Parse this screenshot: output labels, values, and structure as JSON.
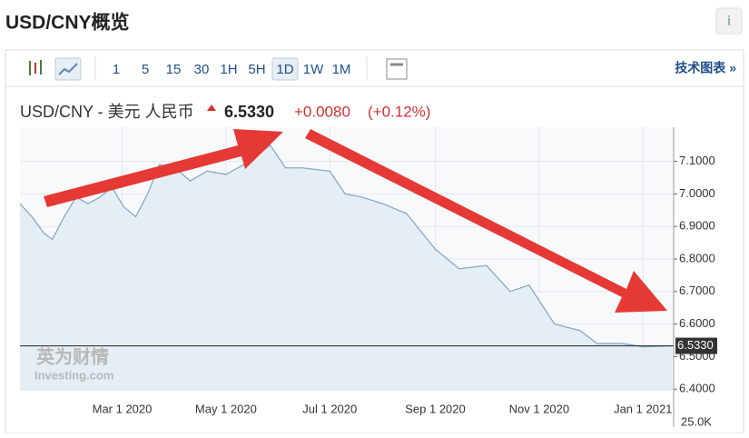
{
  "header": {
    "title": "USD/CNY概览",
    "info": "i"
  },
  "toolbar": {
    "intervals": [
      "1",
      "5",
      "15",
      "30",
      "1H",
      "5H",
      "1D",
      "1W",
      "1M"
    ],
    "active": "1D",
    "link": "技术图表 »"
  },
  "quote": {
    "name": "USD/CNY - 美元 人民币",
    "change": "+0.0080",
    "change_pct": "(+0.12%)"
  },
  "watermark": {
    "cn": "英为财情",
    "en": "Investing.com"
  },
  "chart_data": {
    "type": "area",
    "color": "#86a9c8",
    "fill": "#e6eef5",
    "x": [
      "2020-01-01",
      "2020-01-08",
      "2020-01-15",
      "2020-01-20",
      "2020-01-27",
      "2020-02-03",
      "2020-02-10",
      "2020-02-17",
      "2020-02-24",
      "2020-03-02",
      "2020-03-09",
      "2020-03-16",
      "2020-03-23",
      "2020-04-01",
      "2020-04-10",
      "2020-04-20",
      "2020-05-01",
      "2020-05-15",
      "2020-05-27",
      "2020-06-05",
      "2020-06-15",
      "2020-07-01",
      "2020-07-10",
      "2020-07-20",
      "2020-08-01",
      "2020-08-15",
      "2020-09-01",
      "2020-09-15",
      "2020-10-01",
      "2020-10-15",
      "2020-10-26",
      "2020-11-10",
      "2020-11-25",
      "2020-12-05",
      "2020-12-20",
      "2021-01-01",
      "2021-01-18"
    ],
    "values": [
      6.97,
      6.93,
      6.88,
      6.86,
      6.93,
      6.99,
      6.97,
      6.99,
      7.02,
      6.96,
      6.93,
      7.0,
      7.09,
      7.08,
      7.04,
      7.07,
      7.06,
      7.1,
      7.15,
      7.08,
      7.08,
      7.07,
      7.0,
      6.99,
      6.97,
      6.94,
      6.83,
      6.77,
      6.78,
      6.7,
      6.72,
      6.6,
      6.58,
      6.54,
      6.54,
      6.53,
      6.533
    ],
    "last": {
      "value": 6.533,
      "label": "6.5330"
    },
    "xlim": [
      "2020-01-01",
      "2021-01-19"
    ],
    "xticks": [
      {
        "value": "2020-03-01",
        "label": "Mar 1 2020"
      },
      {
        "value": "2020-05-01",
        "label": "May 1 2020"
      },
      {
        "value": "2020-07-01",
        "label": "Jul 1 2020"
      },
      {
        "value": "2020-09-01",
        "label": "Sep 1 2020"
      },
      {
        "value": "2020-11-01",
        "label": "Nov 1 2020"
      },
      {
        "value": "2021-01-01",
        "label": "Jan 1 2021"
      }
    ],
    "ylim": [
      6.395,
      7.205
    ],
    "yticks": [
      {
        "value": 6.4,
        "label": "6.4000"
      },
      {
        "value": 6.5,
        "label": "6.5000"
      },
      {
        "value": 6.6,
        "label": "6.6000"
      },
      {
        "value": 6.7,
        "label": "6.7000"
      },
      {
        "value": 6.8,
        "label": "6.8000"
      },
      {
        "value": 6.9,
        "label": "6.9000"
      },
      {
        "value": 7.0,
        "label": "7.0000"
      },
      {
        "value": 7.1,
        "label": "7.1000"
      }
    ],
    "volume_label": "25.0K"
  }
}
